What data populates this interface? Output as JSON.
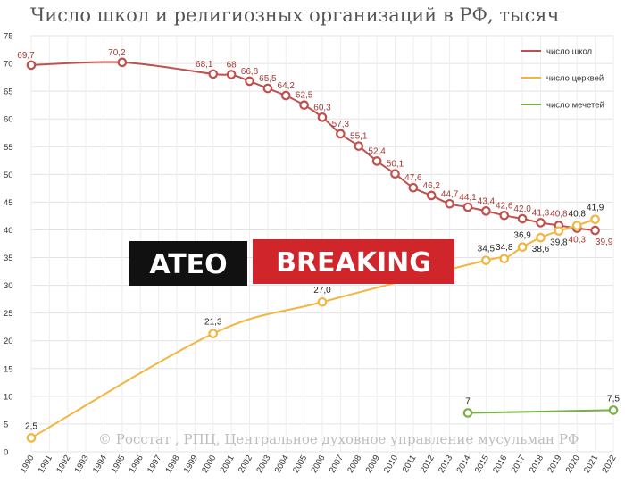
{
  "chart_data": {
    "type": "line",
    "title": "Число школ и религиозных организаций в РФ, тысяч",
    "ylim": [
      0,
      75
    ],
    "yticks": [
      0,
      5,
      10,
      15,
      20,
      25,
      30,
      35,
      40,
      45,
      50,
      55,
      60,
      65,
      70,
      75
    ],
    "x_categories": [
      1990,
      1991,
      1992,
      1993,
      1994,
      1995,
      1996,
      1997,
      1998,
      1999,
      2000,
      2001,
      2002,
      2003,
      2004,
      2005,
      2006,
      2007,
      2008,
      2009,
      2010,
      2011,
      2012,
      2013,
      2014,
      2015,
      2016,
      2017,
      2018,
      2019,
      2020,
      2021,
      2022
    ],
    "grid": true,
    "legend_position": "top-right",
    "series": [
      {
        "name": "число школ",
        "color": "#c0504d",
        "points": [
          {
            "x": 1990,
            "y": 69.7,
            "label": "69,7"
          },
          {
            "x": 1995,
            "y": 70.2,
            "label": "70,2"
          },
          {
            "x": 2000,
            "y": 68.1,
            "label": "68,1"
          },
          {
            "x": 2001,
            "y": 68.0,
            "label": "68"
          },
          {
            "x": 2002,
            "y": 66.8,
            "label": "66,8"
          },
          {
            "x": 2003,
            "y": 65.5,
            "label": "65,5"
          },
          {
            "x": 2004,
            "y": 64.2,
            "label": "64,2"
          },
          {
            "x": 2005,
            "y": 62.5,
            "label": "62,5"
          },
          {
            "x": 2006,
            "y": 60.3,
            "label": "60,3"
          },
          {
            "x": 2007,
            "y": 57.3,
            "label": "57,3"
          },
          {
            "x": 2008,
            "y": 55.1,
            "label": "55,1"
          },
          {
            "x": 2009,
            "y": 52.4,
            "label": "52,4"
          },
          {
            "x": 2010,
            "y": 50.1,
            "label": "50,1"
          },
          {
            "x": 2011,
            "y": 47.6,
            "label": "47,6"
          },
          {
            "x": 2012,
            "y": 46.2,
            "label": "46,2"
          },
          {
            "x": 2013,
            "y": 44.7,
            "label": "44,7"
          },
          {
            "x": 2014,
            "y": 44.1,
            "label": "44,1"
          },
          {
            "x": 2015,
            "y": 43.4,
            "label": "43,4"
          },
          {
            "x": 2016,
            "y": 42.6,
            "label": "42,6"
          },
          {
            "x": 2017,
            "y": 42.0,
            "label": "42,0"
          },
          {
            "x": 2018,
            "y": 41.3,
            "label": "41,3"
          },
          {
            "x": 2019,
            "y": 40.8,
            "label": "40,8"
          },
          {
            "x": 2020,
            "y": 40.3,
            "label": "40,3"
          },
          {
            "x": 2021,
            "y": 39.9,
            "label": "39,9"
          }
        ]
      },
      {
        "name": "число церквей",
        "color": "#f2b640",
        "points": [
          {
            "x": 1990,
            "y": 2.5,
            "label": "2,5"
          },
          {
            "x": 2000,
            "y": 21.3,
            "label": "21,3"
          },
          {
            "x": 2006,
            "y": 27.0,
            "label": "27,0"
          },
          {
            "x": 2015,
            "y": 34.5,
            "label": "34,5"
          },
          {
            "x": 2016,
            "y": 34.8,
            "label": "34,8"
          },
          {
            "x": 2017,
            "y": 36.9,
            "label": "36,9"
          },
          {
            "x": 2018,
            "y": 38.6,
            "label": "38,6"
          },
          {
            "x": 2019,
            "y": 39.8,
            "label": "39,8"
          },
          {
            "x": 2020,
            "y": 40.8,
            "label": "40,8"
          },
          {
            "x": 2021,
            "y": 41.9,
            "label": "41,9"
          }
        ]
      },
      {
        "name": "число мечетей",
        "color": "#77b043",
        "points": [
          {
            "x": 2014,
            "y": 7.0,
            "label": "7"
          },
          {
            "x": 2022,
            "y": 7.5,
            "label": "7,5"
          }
        ]
      }
    ],
    "annotations": {
      "credit": "© Росстат , РПЦ, Центральное духовное управление мусульман РФ",
      "banner_left": "ATEO",
      "banner_right": "BREAKING"
    }
  }
}
